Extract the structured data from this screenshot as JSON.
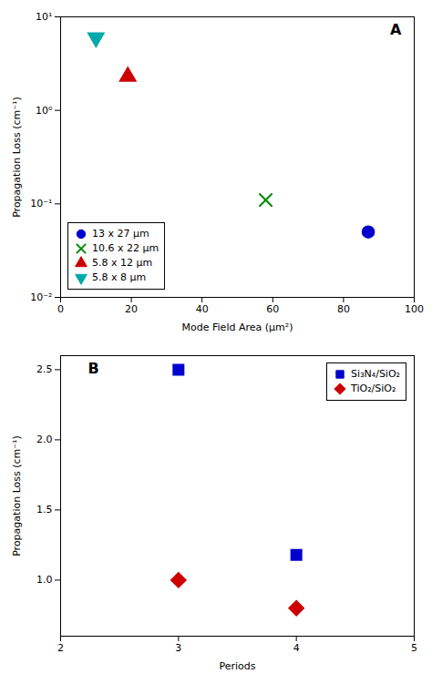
{
  "chart_data": [
    {
      "type": "scatter",
      "xlabel": "Mode Field Area (μm²)",
      "ylabel": "Propagation Loss (cm⁻¹)",
      "log": "y",
      "xlim": [
        0,
        100
      ],
      "ylim": [
        0.01,
        10
      ],
      "xticks": [
        0,
        20,
        40,
        60,
        80,
        100
      ],
      "yticks": [
        {
          "value": 0.01,
          "label": "10⁻²"
        },
        {
          "value": 0.1,
          "label": "10⁻¹"
        },
        {
          "value": 1,
          "label": "10⁰"
        },
        {
          "value": 10,
          "label": "10¹"
        }
      ],
      "legend": "lower left",
      "annotations": [
        "A"
      ],
      "series": [
        {
          "name": "13 x 27 μm",
          "color": "#0000CC",
          "marker": "circle",
          "x": [
            87
          ],
          "values": [
            0.05
          ]
        },
        {
          "name": "10.6 x 22 μm",
          "color": "#008800",
          "marker": "cross",
          "x": [
            58
          ],
          "values": [
            0.11
          ]
        },
        {
          "name": "5.8 x 12 μm",
          "color": "#CC0000",
          "marker": "triangle-up",
          "x": [
            19
          ],
          "values": [
            2.3
          ]
        },
        {
          "name": "5.8 x 8 μm",
          "color": "#00AAAA",
          "marker": "triangle-down",
          "x": [
            10
          ],
          "values": [
            6.0
          ]
        }
      ]
    },
    {
      "type": "scatter",
      "xlabel": "Periods",
      "ylabel": "Propagation Loss (cm⁻¹)",
      "xlim": [
        2,
        5
      ],
      "ylim": [
        0.6,
        2.6
      ],
      "xticks": [
        2,
        3,
        4,
        5
      ],
      "yticks": [
        {
          "value": 1.0,
          "label": "1.0"
        },
        1.5,
        {
          "value": 2.0,
          "label": "2.0"
        },
        2.5
      ],
      "legend": "upper right",
      "annotations": [
        "B"
      ],
      "series": [
        {
          "name": "Si₃N₄/SiO₂",
          "color": "#0000CC",
          "marker": "square",
          "x": [
            3,
            4
          ],
          "values": [
            2.5,
            1.18
          ]
        },
        {
          "name": "TiO₂/SiO₂",
          "color": "#CC0000",
          "marker": "diamond",
          "x": [
            3,
            4
          ],
          "values": [
            1.0,
            0.8
          ]
        }
      ]
    }
  ]
}
